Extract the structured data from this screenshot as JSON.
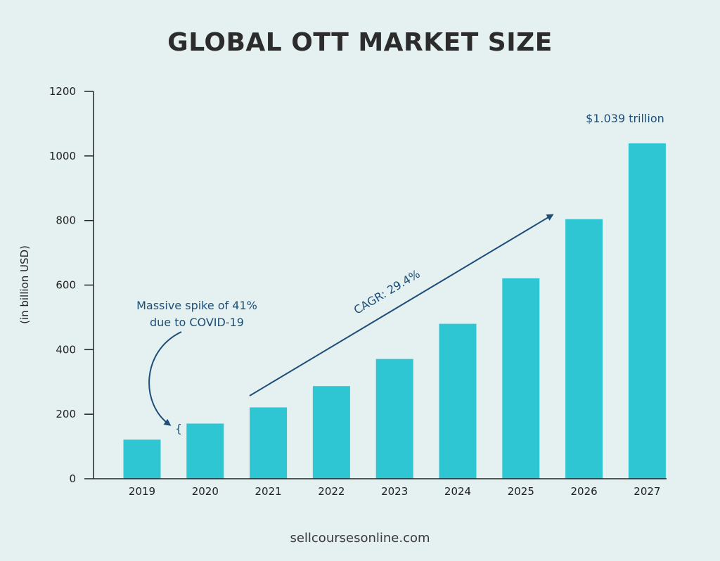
{
  "chart_data": {
    "type": "bar",
    "title": "GLOBAL OTT MARKET SIZE",
    "ylabel": "(in billion USD)",
    "xlabel": "",
    "categories": [
      "2019",
      "2020",
      "2021",
      "2022",
      "2023",
      "2024",
      "2025",
      "2026",
      "2027"
    ],
    "values": [
      121,
      171,
      221,
      287,
      371,
      480,
      621,
      804,
      1039
    ],
    "ylim": [
      0,
      1200
    ],
    "yticks": [
      0,
      200,
      400,
      600,
      800,
      1000,
      1200
    ],
    "grid": false,
    "bar_color": "#2ec6d3",
    "annotations": {
      "spike_line1": "Massive spike of 41%",
      "spike_line2": "due to COVID-19",
      "brace": "{",
      "cagr": "CAGR: 29.4%",
      "final_value": "$1.039 trillion"
    }
  },
  "colors": {
    "background": "#e4f1f0",
    "bar": "#2ec6d3",
    "annotation": "#1d4e78",
    "axis": "#222222",
    "title": "#2c2c2c"
  },
  "footer": {
    "source": "sellcoursesonline.com"
  }
}
